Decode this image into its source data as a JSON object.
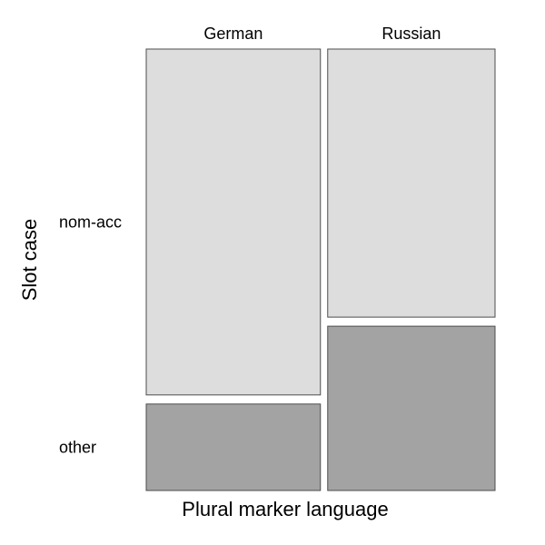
{
  "chart_data": {
    "type": "mosaic",
    "xlabel": "Plural marker language",
    "ylabel": "Slot case",
    "columns": [
      "German",
      "Russian"
    ],
    "rows": [
      "nom-acc",
      "other"
    ],
    "column_widths": [
      0.51,
      0.49
    ],
    "proportions": [
      {
        "column": "German",
        "nom-acc": 0.8,
        "other": 0.2
      },
      {
        "column": "Russian",
        "nom-acc": 0.62,
        "other": 0.38
      }
    ],
    "colors": {
      "nom-acc": "#dddddd",
      "other": "#a3a3a3",
      "stroke": "#4d4d4d"
    }
  }
}
